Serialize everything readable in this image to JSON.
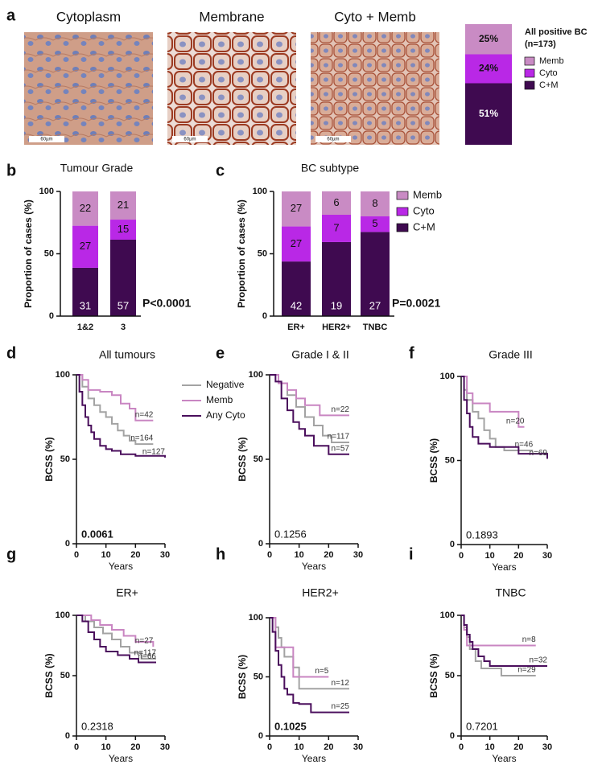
{
  "panel_labels": [
    "a",
    "b",
    "c",
    "d",
    "e",
    "f",
    "g",
    "h",
    "i"
  ],
  "images": [
    {
      "title": "Cytoplasm",
      "scale_label": "60µm"
    },
    {
      "title": "Membrane",
      "scale_label": "60µm"
    },
    {
      "title": "Cyto + Memb",
      "scale_label": "60µm"
    }
  ],
  "chart_data": [
    {
      "type": "stacked_bar",
      "title": "All positive BC",
      "subtitle": "(n=173)",
      "legend": true,
      "series": [
        {
          "name": "C+M",
          "color": "#3f0a50",
          "values": [
            51
          ],
          "value_labels": [
            "51%"
          ]
        },
        {
          "name": "Cyto",
          "color": "#b928e6",
          "values": [
            24
          ],
          "value_labels": [
            "24%"
          ]
        },
        {
          "name": "Memb",
          "color": "#c98bc4",
          "values": [
            25
          ],
          "value_labels": [
            "25%"
          ]
        }
      ]
    },
    {
      "type": "stacked_bar",
      "title": "Tumour Grade",
      "ylabel": "Proportion of cases (%)",
      "annotation": "P<0.0001",
      "legend": false,
      "categories": [
        "1&2",
        "3"
      ],
      "ylim": [
        0,
        100
      ],
      "yticks": [
        0,
        50,
        100
      ],
      "series": [
        {
          "name": "C+M",
          "color": "#3f0a50",
          "values": [
            38.75,
            61.3
          ],
          "counts": [
            31,
            57
          ]
        },
        {
          "name": "Cyto",
          "color": "#b928e6",
          "values": [
            33.75,
            16.1
          ],
          "counts": [
            27,
            15
          ]
        },
        {
          "name": "Memb",
          "color": "#c98bc4",
          "values": [
            27.5,
            22.6
          ],
          "counts": [
            22,
            21
          ]
        }
      ]
    },
    {
      "type": "stacked_bar",
      "title": "BC subtype",
      "ylabel": "Proportion of cases (%)",
      "annotation": "P=0.0021",
      "legend": true,
      "categories": [
        "ER+",
        "HER2+",
        "TNBC"
      ],
      "ylim": [
        0,
        100
      ],
      "yticks": [
        0,
        50,
        100
      ],
      "series": [
        {
          "name": "C+M",
          "color": "#3f0a50",
          "values": [
            43.8,
            59.4,
            67.5
          ],
          "counts": [
            42,
            19,
            27
          ]
        },
        {
          "name": "Cyto",
          "color": "#b928e6",
          "values": [
            28.1,
            21.9,
            12.5
          ],
          "counts": [
            27,
            7,
            5
          ]
        },
        {
          "name": "Memb",
          "color": "#c98bc4",
          "values": [
            28.1,
            18.8,
            20
          ],
          "counts": [
            27,
            6,
            8
          ]
        }
      ]
    },
    {
      "type": "km",
      "title": "All tumours",
      "xlabel": "Years",
      "ylabel": "BCSS (%)",
      "pvalue": "0.0061",
      "pvalue_bold": true,
      "legend": true,
      "xlim": [
        0,
        30
      ],
      "xticks": [
        0,
        10,
        20,
        30
      ],
      "ylim": [
        0,
        100
      ],
      "yticks": [
        0,
        50,
        100
      ],
      "series": [
        {
          "name": "Negative",
          "color": "#a3a3a3",
          "label": "n=164",
          "x": [
            0,
            2,
            4,
            6,
            8,
            10,
            12,
            14,
            16,
            18,
            20,
            26
          ],
          "values": [
            100,
            93,
            86,
            82,
            78,
            75,
            71,
            67,
            64,
            61,
            59,
            59
          ]
        },
        {
          "name": "Memb",
          "color": "#c986c2",
          "label": "n=42",
          "x": [
            0,
            2,
            4,
            8,
            12,
            15,
            18,
            20,
            26
          ],
          "values": [
            100,
            97,
            91,
            90,
            88,
            83,
            80,
            73,
            73
          ]
        },
        {
          "name": "Any Cyto",
          "color": "#4a0e5c",
          "label": "n=127",
          "x": [
            0,
            1,
            2,
            3,
            4,
            5,
            6,
            8,
            10,
            12,
            15,
            20,
            30
          ],
          "values": [
            100,
            90,
            82,
            75,
            70,
            66,
            62,
            58,
            56,
            55,
            53,
            52,
            51
          ]
        }
      ]
    },
    {
      "type": "km",
      "title": "Grade I & II",
      "xlabel": "Years",
      "ylabel": "BCSS (%)",
      "pvalue": "0.1256",
      "pvalue_bold": false,
      "legend": false,
      "xlim": [
        0,
        30
      ],
      "xticks": [
        0,
        10,
        20,
        30
      ],
      "ylim": [
        0,
        100
      ],
      "yticks": [
        0,
        50,
        100
      ],
      "series": [
        {
          "name": "Negative",
          "color": "#a3a3a3",
          "label": "n=117",
          "x": [
            0,
            3,
            6,
            9,
            12,
            15,
            18,
            21,
            27
          ],
          "values": [
            100,
            95,
            88,
            81,
            75,
            70,
            64,
            60,
            60
          ]
        },
        {
          "name": "Memb",
          "color": "#c986c2",
          "label": "n=22",
          "x": [
            0,
            3,
            6,
            9,
            12,
            17,
            27
          ],
          "values": [
            100,
            95,
            91,
            86,
            82,
            76,
            76
          ]
        },
        {
          "name": "Any Cyto",
          "color": "#4a0e5c",
          "label": "n=57",
          "x": [
            0,
            2,
            4,
            6,
            8,
            10,
            12,
            15,
            20,
            27
          ],
          "values": [
            100,
            96,
            86,
            79,
            72,
            68,
            64,
            58,
            53,
            53
          ]
        }
      ]
    },
    {
      "type": "km",
      "title": "Grade III",
      "xlabel": "Years",
      "ylabel": "BCSS (%)",
      "pvalue": "0.1893",
      "pvalue_bold": false,
      "legend": false,
      "xlim": [
        0,
        30
      ],
      "xticks": [
        0,
        10,
        20,
        30
      ],
      "ylim": [
        0,
        100
      ],
      "yticks": [
        0,
        50,
        100
      ],
      "series": [
        {
          "name": "Negative",
          "color": "#a3a3a3",
          "label": "n=46",
          "x": [
            0,
            1,
            2,
            4,
            6,
            8,
            10,
            12,
            15,
            25
          ],
          "values": [
            100,
            92,
            86,
            79,
            75,
            68,
            63,
            58,
            56,
            56
          ]
        },
        {
          "name": "Memb",
          "color": "#c986c2",
          "label": "n=20",
          "x": [
            0,
            2,
            4,
            10,
            20,
            22
          ],
          "values": [
            100,
            90,
            84,
            79,
            70,
            70
          ]
        },
        {
          "name": "Any Cyto",
          "color": "#4a0e5c",
          "label": "n=69",
          "x": [
            0,
            1,
            2,
            3,
            4,
            6,
            10,
            20,
            30
          ],
          "values": [
            100,
            86,
            78,
            70,
            64,
            60,
            58,
            54,
            51
          ]
        }
      ]
    },
    {
      "type": "km",
      "title": "ER+",
      "xlabel": "Years",
      "ylabel": "BCSS (%)",
      "pvalue": "0.2318",
      "pvalue_bold": false,
      "legend": false,
      "xlim": [
        0,
        30
      ],
      "xticks": [
        0,
        10,
        20,
        30
      ],
      "ylim": [
        0,
        100
      ],
      "yticks": [
        0,
        50,
        100
      ],
      "series": [
        {
          "name": "Negative",
          "color": "#a3a3a3",
          "label": "n=117",
          "x": [
            0,
            3,
            6,
            9,
            12,
            15,
            18,
            22,
            27
          ],
          "values": [
            100,
            95,
            90,
            85,
            80,
            74,
            69,
            64,
            64
          ]
        },
        {
          "name": "Memb",
          "color": "#c986c2",
          "label": "n=27",
          "x": [
            0,
            5,
            8,
            12,
            16,
            20,
            26
          ],
          "values": [
            100,
            96,
            92,
            88,
            83,
            78,
            74
          ]
        },
        {
          "name": "Any Cyto",
          "color": "#4a0e5c",
          "label": "n=66",
          "x": [
            0,
            2,
            4,
            6,
            8,
            10,
            14,
            18,
            21,
            27
          ],
          "values": [
            100,
            95,
            86,
            80,
            74,
            70,
            67,
            64,
            61,
            61
          ]
        }
      ]
    },
    {
      "type": "km",
      "title": "HER2+",
      "xlabel": "Years",
      "ylabel": "BCSS (%)",
      "pvalue": "0.1025",
      "pvalue_bold": true,
      "legend": false,
      "xlim": [
        0,
        30
      ],
      "xticks": [
        0,
        10,
        20,
        30
      ],
      "ylim": [
        0,
        100
      ],
      "yticks": [
        0,
        50,
        100
      ],
      "series": [
        {
          "name": "Negative",
          "color": "#a3a3a3",
          "label": "n=12",
          "x": [
            0,
            2,
            3,
            4,
            5,
            8,
            10,
            27
          ],
          "values": [
            100,
            92,
            83,
            75,
            67,
            58,
            40,
            40
          ]
        },
        {
          "name": "Memb",
          "color": "#c986c2",
          "label": "n=5",
          "x": [
            0,
            1,
            2,
            5,
            8,
            20
          ],
          "values": [
            100,
            100,
            75,
            75,
            50,
            50
          ]
        },
        {
          "name": "Any Cyto",
          "color": "#4a0e5c",
          "label": "n=25",
          "x": [
            0,
            1,
            2,
            3,
            4,
            5,
            6,
            8,
            10,
            14,
            27
          ],
          "values": [
            100,
            88,
            72,
            60,
            50,
            40,
            35,
            28,
            27,
            20,
            20
          ]
        }
      ]
    },
    {
      "type": "km",
      "title": "TNBC",
      "xlabel": "Years",
      "ylabel": "BCSS (%)",
      "pvalue": "0.7201",
      "pvalue_bold": false,
      "legend": false,
      "xlim": [
        0,
        30
      ],
      "xticks": [
        0,
        10,
        20,
        30
      ],
      "ylim": [
        0,
        100
      ],
      "yticks": [
        0,
        50,
        100
      ],
      "series": [
        {
          "name": "Negative",
          "color": "#a3a3a3",
          "label": "n=29",
          "x": [
            0,
            1,
            2,
            3,
            5,
            7,
            14,
            26
          ],
          "values": [
            100,
            90,
            82,
            72,
            62,
            56,
            50,
            50
          ]
        },
        {
          "name": "Memb",
          "color": "#c986c2",
          "label": "n=8",
          "x": [
            0,
            1,
            2,
            26
          ],
          "values": [
            100,
            88,
            75,
            75
          ]
        },
        {
          "name": "Any Cyto",
          "color": "#4a0e5c",
          "label": "n=32",
          "x": [
            0,
            1,
            2,
            3,
            4,
            6,
            8,
            10,
            30
          ],
          "values": [
            100,
            92,
            84,
            78,
            72,
            66,
            62,
            58,
            58
          ]
        }
      ]
    }
  ]
}
